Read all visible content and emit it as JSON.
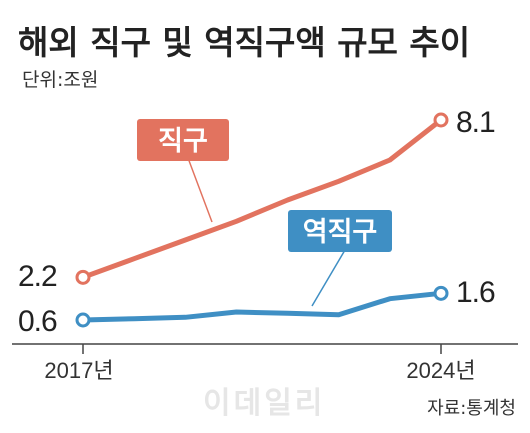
{
  "chart_data": {
    "type": "line",
    "title": "해외 직구 및 역직구액 규모 추이",
    "unit": "단위:조원",
    "x": [
      2017,
      2018,
      2019,
      2020,
      2021,
      2022,
      2023,
      2024
    ],
    "x_tick_labels": [
      "2017년",
      "2024년"
    ],
    "series": [
      {
        "name": "직구",
        "color": "#e2735f",
        "values": [
          2.2,
          2.9,
          3.6,
          4.3,
          5.1,
          5.8,
          6.6,
          8.1
        ],
        "start_label": "2.2",
        "end_label": "8.1"
      },
      {
        "name": "역직구",
        "color": "#3f8fc4",
        "values": [
          0.6,
          0.65,
          0.7,
          0.9,
          0.85,
          0.8,
          1.4,
          1.6
        ],
        "start_label": "0.6",
        "end_label": "1.6"
      }
    ],
    "ylim": [
      0,
      8.5
    ],
    "grid": false,
    "legend": "inline-labels"
  },
  "source": "자료:통계청",
  "watermark": "이데일리"
}
